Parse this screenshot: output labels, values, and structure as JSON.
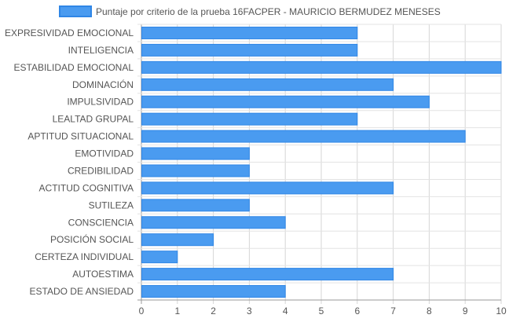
{
  "chart_data": {
    "type": "bar",
    "orientation": "horizontal",
    "legend_position": "top-center",
    "grid": true,
    "xlim": [
      0,
      10
    ],
    "x_ticks": [
      "0",
      "1",
      "2",
      "3",
      "4",
      "5",
      "6",
      "7",
      "8",
      "9",
      "10"
    ],
    "categories": [
      "EXPRESIVIDAD EMOCIONAL",
      "INTELIGENCIA",
      "ESTABILIDAD EMOCIONAL",
      "DOMINACIÓN",
      "IMPULSIVIDAD",
      "LEALTAD GRUPAL",
      "APTITUD SITUACIONAL",
      "EMOTIVIDAD",
      "CREDIBILIDAD",
      "ACTITUD COGNITIVA",
      "SUTILEZA",
      "CONSCIENCIA",
      "POSICIÓN SOCIAL",
      "CERTEZA INDIVIDUAL",
      "AUTOESTIMA",
      "ESTADO DE ANSIEDAD"
    ],
    "series": [
      {
        "name": "Puntaje por criterio de la prueba 16FACPER - MAURICIO BERMUDEZ MENESES",
        "color": "#4a9bf0",
        "border_color": "#2f86e6",
        "values": [
          6,
          6,
          10,
          7,
          8,
          6,
          9,
          3,
          3,
          7,
          3,
          4,
          2,
          1,
          7,
          4
        ]
      }
    ]
  }
}
